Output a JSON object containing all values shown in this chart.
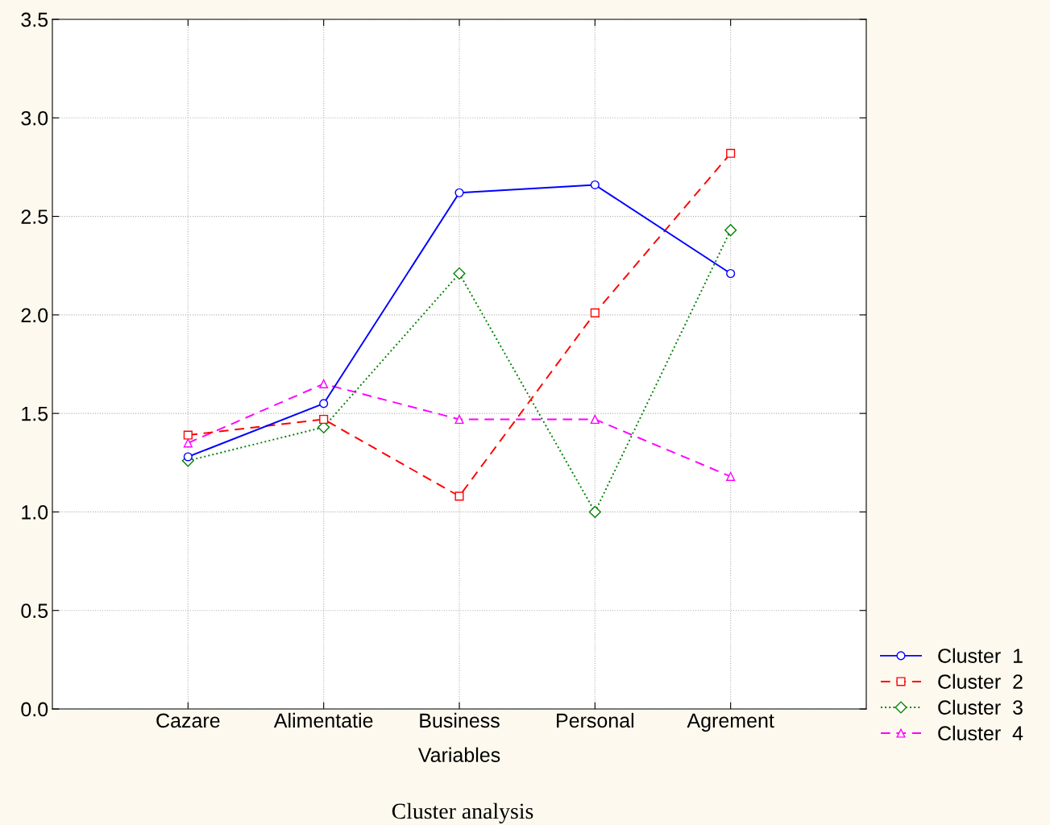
{
  "chart_data": {
    "type": "line",
    "title": "Cluster analysis",
    "xlabel": "Variables",
    "categories": [
      "Cazare",
      "Alimentatie",
      "Business",
      "Personal",
      "Agrement"
    ],
    "series": [
      {
        "name": "Cluster  1",
        "color": "#0000ff",
        "marker": "circle",
        "line_style": "solid",
        "values": [
          1.28,
          1.55,
          2.62,
          2.66,
          2.21
        ]
      },
      {
        "name": "Cluster  2",
        "color": "#ff0000",
        "marker": "square",
        "line_style": "dashed",
        "values": [
          1.39,
          1.47,
          1.08,
          2.01,
          2.82
        ]
      },
      {
        "name": "Cluster  3",
        "color": "#008000",
        "marker": "diamond",
        "line_style": "dotted",
        "values": [
          1.26,
          1.43,
          2.21,
          1.0,
          2.43
        ]
      },
      {
        "name": "Cluster  4",
        "color": "#ff00ff",
        "marker": "triangle",
        "line_style": "dashed",
        "values": [
          1.35,
          1.65,
          1.47,
          1.47,
          1.18
        ]
      }
    ],
    "ylim": [
      0,
      3.5
    ],
    "yticks": [
      {
        "value": 0,
        "label": "0.0"
      },
      {
        "value": 0.5,
        "label": "0.5"
      },
      {
        "value": 1,
        "label": "1.0"
      },
      {
        "value": 1.5,
        "label": "1.5"
      },
      {
        "value": 2,
        "label": "2.0"
      },
      {
        "value": 2.5,
        "label": "2.5"
      },
      {
        "value": 3,
        "label": "3.0"
      },
      {
        "value": 3.5,
        "label": "3.5"
      }
    ],
    "grid": true,
    "legend": "bottom right"
  }
}
